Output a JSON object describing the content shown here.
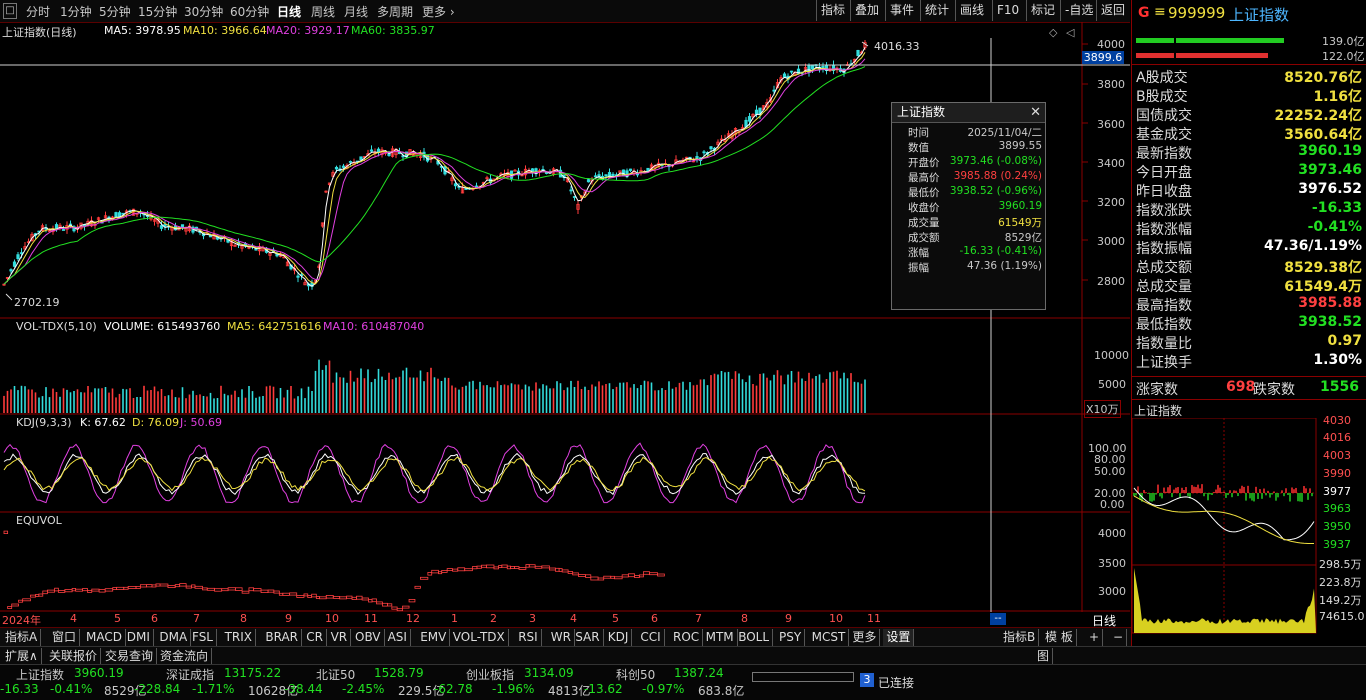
{
  "periods": [
    "分时",
    "1分钟",
    "5分钟",
    "15分钟",
    "30分钟",
    "60分钟",
    "日线",
    "周线",
    "月线",
    "多周期",
    "更多 ›"
  ],
  "active_period": "日线",
  "tools": [
    "指标",
    "叠加",
    "事件",
    "统计",
    "画线",
    "F10",
    "标记",
    "-自选",
    "返回"
  ],
  "header_icon": "□",
  "main_panel": {
    "title": "上证指数(日线)",
    "ma5": "MA5: 3978.95",
    "ma10": "MA10: 3966.64",
    "ma20": "MA20: 3929.17",
    "ma60": "MA60: 3835.97",
    "high_label": "4016.33",
    "low_label": "2702.19",
    "cursor_value": "3899.6",
    "yticks": [
      "4000",
      "3800",
      "3600",
      "3400",
      "3200",
      "3000",
      "2800"
    ]
  },
  "vol_panel": {
    "title": "VOL-TDX(5,10)",
    "volume": "VOLUME: 615493760",
    "ma5": "MA5: 642751616",
    "ma10": "MA10: 610487040",
    "yticks": [
      "10000",
      "5000"
    ],
    "unit": "X10万"
  },
  "kdj_panel": {
    "title": "KDJ(9,3,3)",
    "k": "K: 67.62",
    "d": "D: 76.09",
    "j": "J: 50.69",
    "yticks": [
      "100.00",
      "80.00",
      "50.00",
      "20.00",
      "0.00"
    ]
  },
  "equvol_panel": {
    "title": "EQUVOL",
    "yticks": [
      "4000",
      "3500",
      "3000"
    ]
  },
  "x_axis": {
    "labels": [
      "2024年",
      "4",
      "5",
      "6",
      "7",
      "8",
      "9",
      "10",
      "11",
      "12",
      "1",
      "2",
      "3",
      "4",
      "5",
      "6",
      "7",
      "8",
      "9",
      "10",
      "11"
    ],
    "period_label": "日线",
    "cursor_label": "--"
  },
  "popup": {
    "title": "上证指数",
    "rows": [
      {
        "k": "时间",
        "v": "2025/11/04/二",
        "c": "grey"
      },
      {
        "k": "数值",
        "v": "3899.55",
        "c": "grey"
      },
      {
        "k": "开盘价",
        "v": "3973.46 (-0.08%)",
        "c": "green"
      },
      {
        "k": "最高价",
        "v": "3985.88 (0.24%)",
        "c": "red"
      },
      {
        "k": "最低价",
        "v": "3938.52 (-0.96%)",
        "c": "green"
      },
      {
        "k": "收盘价",
        "v": "3960.19",
        "c": "green"
      },
      {
        "k": "成交量",
        "v": "61549万",
        "c": "yellow"
      },
      {
        "k": "成交额",
        "v": "8529亿",
        "c": "grey"
      },
      {
        "k": "涨幅",
        "v": "-16.33 (-0.41%)",
        "c": "green"
      },
      {
        "k": "振幅",
        "v": "47.36 (1.19%)",
        "c": "grey"
      }
    ]
  },
  "right": {
    "g": "G",
    "menu": "≡",
    "code": "999999",
    "name": "上证指数",
    "buy_amt": "139.0亿",
    "sell_amt": "122.0亿",
    "rows": [
      {
        "k": "A股成交",
        "v": "8520.76亿",
        "c": "yellow"
      },
      {
        "k": "B股成交",
        "v": "1.16亿",
        "c": "yellow"
      },
      {
        "k": "国债成交",
        "v": "22252.24亿",
        "c": "yellow"
      },
      {
        "k": "基金成交",
        "v": "3560.64亿",
        "c": "yellow"
      },
      {
        "k": "最新指数",
        "v": "3960.19",
        "c": "green"
      },
      {
        "k": "今日开盘",
        "v": "3973.46",
        "c": "green"
      },
      {
        "k": "昨日收盘",
        "v": "3976.52",
        "c": "white"
      },
      {
        "k": "指数涨跌",
        "v": "-16.33",
        "c": "green"
      },
      {
        "k": "指数涨幅",
        "v": "-0.41%",
        "c": "green"
      },
      {
        "k": "指数振幅",
        "v": "47.36/1.19%",
        "c": "white"
      },
      {
        "k": "总成交额",
        "v": "8529.38亿",
        "c": "yellow"
      },
      {
        "k": "总成交量",
        "v": "61549.4万",
        "c": "yellow"
      },
      {
        "k": "最高指数",
        "v": "3985.88",
        "c": "red"
      },
      {
        "k": "最低指数",
        "v": "3938.52",
        "c": "green"
      },
      {
        "k": "指数量比",
        "v": "0.97",
        "c": "yellow"
      },
      {
        "k": "上证换手",
        "v": "1.30%",
        "c": "white"
      }
    ],
    "up_label": "涨家数",
    "up_count": "698",
    "down_label": "跌家数",
    "down_count": "1556",
    "mini_title": "上证指数",
    "mini_yticks": [
      "4030",
      "4016",
      "4003",
      "3990",
      "3977",
      "3963",
      "3950",
      "3937"
    ],
    "mini_vol_ticks": [
      "298.5万",
      "223.8万",
      "149.2万",
      "74615.0"
    ],
    "tabs": [
      "指标B",
      "模 板",
      "+",
      "−"
    ]
  },
  "tabs": [
    "指标A",
    "窗口",
    "MACD",
    "DMI",
    "DMA",
    "FSL",
    "TRIX",
    "BRAR",
    "CR",
    "VR",
    "OBV",
    "ASI",
    "EMV",
    "VOL-TDX",
    "RSI",
    "WR",
    "SAR",
    "KDJ",
    "CCI",
    "ROC",
    "MTM",
    "BOLL",
    "PSY",
    "MCST",
    "更多",
    "设置"
  ],
  "tabs2": [
    "扩展∧",
    "关联报价",
    "交易查询",
    "资金流向"
  ],
  "tabs2_right": "图",
  "status": [
    {
      "name": "上证指数",
      "val": "3960.19",
      "chg": "-16.33",
      "pct": "-0.41%",
      "amt": "8529亿"
    },
    {
      "name": "深证成指",
      "val": "13175.22",
      "chg": "-228.84",
      "pct": "-1.71%",
      "amt": "10628亿"
    },
    {
      "name": "北证50",
      "val": "1528.79",
      "chg": "-38.44",
      "pct": "-2.45%",
      "amt": "229.5亿"
    },
    {
      "name": "创业板指",
      "val": "3134.09",
      "chg": "-62.78",
      "pct": "-1.96%",
      "amt": "4813亿"
    },
    {
      "name": "科创50",
      "val": "1387.24",
      "chg": "-13.62",
      "pct": "-0.97%",
      "amt": "683.8亿"
    }
  ],
  "conn_count": "3",
  "conn_label": "已连接"
}
